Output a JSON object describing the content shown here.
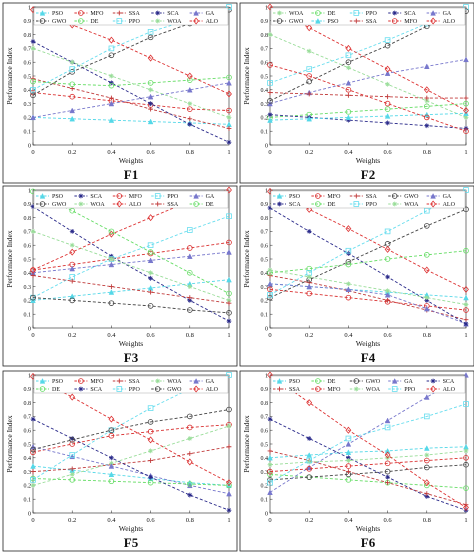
{
  "figure": {
    "line_color": "#222222"
  },
  "chart_data": [
    {
      "type": "line",
      "label": "F1",
      "xlabel": "Weights",
      "ylabel": "Performance Index",
      "xlim": [
        0,
        1
      ],
      "ylim": [
        0,
        1
      ],
      "xticks": [
        "0",
        "0.2",
        "0.4",
        "0.6",
        "0.8",
        "1"
      ],
      "yticks": [
        "0",
        "0.1",
        "0.2",
        "0.3",
        "0.4",
        "0.5",
        "0.6",
        "0.7",
        "0.8",
        "0.9",
        "1"
      ],
      "legend": [
        "PSO",
        "MFO",
        "SSA",
        "SCA",
        "GA",
        "GWO",
        "DE",
        "PPO",
        "WOA",
        "ALO"
      ],
      "x": [
        0,
        0.2,
        0.4,
        0.6,
        0.8,
        1
      ],
      "series": [
        {
          "name": "PSO",
          "color": "#55d8e8",
          "marker": "triangle",
          "values": [
            0.2,
            0.19,
            0.18,
            0.17,
            0.16,
            0.15
          ]
        },
        {
          "name": "MFO",
          "color": "#d93030",
          "marker": "circle",
          "values": [
            0.38,
            0.35,
            0.32,
            0.29,
            0.26,
            0.25
          ]
        },
        {
          "name": "SSA",
          "color": "#c03a3a",
          "marker": "plus",
          "values": [
            0.48,
            0.41,
            0.34,
            0.26,
            0.19,
            0.12
          ]
        },
        {
          "name": "SCA",
          "color": "#2a2a8a",
          "marker": "star",
          "values": [
            0.75,
            0.6,
            0.45,
            0.3,
            0.15,
            0.02
          ]
        },
        {
          "name": "GA",
          "color": "#7777cc",
          "marker": "triangle",
          "values": [
            0.2,
            0.25,
            0.3,
            0.35,
            0.4,
            0.45
          ]
        },
        {
          "name": "GWO",
          "color": "#444444",
          "marker": "circle",
          "values": [
            0.36,
            0.53,
            0.65,
            0.78,
            0.88,
            0.98
          ]
        },
        {
          "name": "DE",
          "color": "#66dd66",
          "marker": "circle",
          "values": [
            0.46,
            0.44,
            0.43,
            0.45,
            0.47,
            0.49
          ]
        },
        {
          "name": "PPO",
          "color": "#66ddee",
          "marker": "square",
          "values": [
            0.4,
            0.55,
            0.7,
            0.82,
            0.91,
            1.0
          ]
        },
        {
          "name": "WOA",
          "color": "#99dd99",
          "marker": "star",
          "values": [
            0.7,
            0.6,
            0.5,
            0.4,
            0.3,
            0.2
          ]
        },
        {
          "name": "ALO",
          "color": "#dd3333",
          "marker": "diamond",
          "values": [
            0.98,
            0.87,
            0.76,
            0.63,
            0.5,
            0.37
          ]
        }
      ]
    },
    {
      "type": "line",
      "label": "F2",
      "xlabel": "Weights",
      "ylabel": "Performance Index",
      "xlim": [
        0,
        1
      ],
      "ylim": [
        0,
        1
      ],
      "xticks": [
        "0",
        "0.2",
        "0.4",
        "0.6",
        "0.8",
        "1"
      ],
      "yticks": [
        "0",
        "0.1",
        "0.2",
        "0.3",
        "0.4",
        "0.5",
        "0.6",
        "0.7",
        "0.8",
        "0.9",
        "1"
      ],
      "legend": [
        "WOA",
        "DE",
        "PPO",
        "SCA",
        "GA",
        "GWO",
        "PSO",
        "SSA",
        "MFO",
        "ALO"
      ],
      "x": [
        0,
        0.2,
        0.4,
        0.6,
        0.8,
        1
      ],
      "series": [
        {
          "name": "WOA",
          "color": "#99dd99",
          "marker": "star",
          "values": [
            0.8,
            0.68,
            0.56,
            0.44,
            0.32,
            0.2
          ]
        },
        {
          "name": "DE",
          "color": "#66dd66",
          "marker": "circle",
          "values": [
            0.2,
            0.22,
            0.24,
            0.26,
            0.28,
            0.3
          ]
        },
        {
          "name": "PPO",
          "color": "#66ddee",
          "marker": "square",
          "values": [
            0.45,
            0.55,
            0.65,
            0.76,
            0.88,
            1.0
          ]
        },
        {
          "name": "SCA",
          "color": "#2a2a8a",
          "marker": "star",
          "values": [
            0.22,
            0.2,
            0.18,
            0.16,
            0.14,
            0.12
          ]
        },
        {
          "name": "GA",
          "color": "#7777cc",
          "marker": "triangle",
          "values": [
            0.3,
            0.38,
            0.45,
            0.52,
            0.57,
            0.62
          ]
        },
        {
          "name": "GWO",
          "color": "#444444",
          "marker": "circle",
          "values": [
            0.32,
            0.46,
            0.6,
            0.72,
            0.86,
            0.97
          ]
        },
        {
          "name": "PSO",
          "color": "#55d8e8",
          "marker": "triangle",
          "values": [
            0.18,
            0.19,
            0.2,
            0.21,
            0.22,
            0.23
          ]
        },
        {
          "name": "SSA",
          "color": "#c03a3a",
          "marker": "plus",
          "values": [
            0.38,
            0.37,
            0.36,
            0.35,
            0.34,
            0.34
          ]
        },
        {
          "name": "MFO",
          "color": "#d93030",
          "marker": "circle",
          "values": [
            0.58,
            0.5,
            0.4,
            0.3,
            0.2,
            0.1
          ]
        },
        {
          "name": "ALO",
          "color": "#dd3333",
          "marker": "diamond",
          "values": [
            1.0,
            0.85,
            0.7,
            0.55,
            0.4,
            0.25
          ]
        }
      ]
    },
    {
      "type": "line",
      "label": "F3",
      "xlabel": "Weights",
      "ylabel": "Performance Index",
      "xlim": [
        0,
        1
      ],
      "ylim": [
        0,
        1
      ],
      "xticks": [
        "0",
        "0.2",
        "0.4",
        "0.6",
        "0.8",
        "1"
      ],
      "yticks": [
        "0",
        "0.1",
        "0.2",
        "0.3",
        "0.4",
        "0.5",
        "0.6",
        "0.7",
        "0.8",
        "0.9",
        "1"
      ],
      "legend": [
        "PSO",
        "SCA",
        "MFO",
        "PPO",
        "GA",
        "GWO",
        "WOA",
        "ALO",
        "SSA",
        "DE"
      ],
      "x": [
        0,
        0.2,
        0.4,
        0.6,
        0.8,
        1
      ],
      "series": [
        {
          "name": "PSO",
          "color": "#55d8e8",
          "marker": "triangle",
          "values": [
            0.2,
            0.23,
            0.26,
            0.29,
            0.32,
            0.35
          ]
        },
        {
          "name": "SCA",
          "color": "#2a2a8a",
          "marker": "star",
          "values": [
            0.88,
            0.7,
            0.52,
            0.36,
            0.2,
            0.05
          ]
        },
        {
          "name": "MFO",
          "color": "#d93030",
          "marker": "circle",
          "values": [
            0.42,
            0.46,
            0.5,
            0.54,
            0.58,
            0.62
          ]
        },
        {
          "name": "PPO",
          "color": "#66ddee",
          "marker": "square",
          "values": [
            0.22,
            0.37,
            0.5,
            0.6,
            0.71,
            0.81
          ]
        },
        {
          "name": "GA",
          "color": "#7777cc",
          "marker": "triangle",
          "values": [
            0.4,
            0.43,
            0.46,
            0.49,
            0.52,
            0.55
          ]
        },
        {
          "name": "GWO",
          "color": "#444444",
          "marker": "circle",
          "values": [
            0.22,
            0.2,
            0.18,
            0.16,
            0.13,
            0.11
          ]
        },
        {
          "name": "WOA",
          "color": "#99dd99",
          "marker": "star",
          "values": [
            0.7,
            0.6,
            0.5,
            0.4,
            0.3,
            0.2
          ]
        },
        {
          "name": "ALO",
          "color": "#dd3333",
          "marker": "diamond",
          "values": [
            0.42,
            0.55,
            0.68,
            0.8,
            0.92,
            1.0
          ]
        },
        {
          "name": "SSA",
          "color": "#c03a3a",
          "marker": "plus",
          "values": [
            0.38,
            0.34,
            0.3,
            0.26,
            0.22,
            0.18
          ]
        },
        {
          "name": "DE",
          "color": "#66dd66",
          "marker": "circle",
          "values": [
            0.99,
            0.85,
            0.7,
            0.55,
            0.4,
            0.25
          ]
        }
      ]
    },
    {
      "type": "line",
      "label": "F4",
      "xlabel": "Weights",
      "ylabel": "Performance Index",
      "xlim": [
        0,
        1
      ],
      "ylim": [
        0,
        1
      ],
      "xticks": [
        "0",
        "0.2",
        "0.4",
        "0.6",
        "0.8",
        "1"
      ],
      "yticks": [
        "0",
        "0.1",
        "0.2",
        "0.3",
        "0.4",
        "0.5",
        "0.6",
        "0.7",
        "0.8",
        "0.9",
        "1"
      ],
      "legend": [
        "PSO",
        "MFO",
        "SSA",
        "GWO",
        "GA",
        "SCA",
        "DE",
        "PPO",
        "WOA",
        "ALO"
      ],
      "x": [
        0,
        0.2,
        0.4,
        0.6,
        0.8,
        1
      ],
      "series": [
        {
          "name": "PSO",
          "color": "#55d8e8",
          "marker": "triangle",
          "values": [
            0.32,
            0.3,
            0.28,
            0.26,
            0.24,
            0.22
          ]
        },
        {
          "name": "MFO",
          "color": "#d93030",
          "marker": "circle",
          "values": [
            0.28,
            0.25,
            0.22,
            0.19,
            0.16,
            0.13
          ]
        },
        {
          "name": "SSA",
          "color": "#c03a3a",
          "marker": "plus",
          "values": [
            0.38,
            0.33,
            0.27,
            0.2,
            0.13,
            0.06
          ]
        },
        {
          "name": "GWO",
          "color": "#444444",
          "marker": "circle",
          "values": [
            0.22,
            0.35,
            0.48,
            0.61,
            0.74,
            0.86
          ]
        },
        {
          "name": "GA",
          "color": "#7777cc",
          "marker": "triangle",
          "values": [
            0.32,
            0.3,
            0.28,
            0.24,
            0.14,
            0.03
          ]
        },
        {
          "name": "SCA",
          "color": "#2a2a8a",
          "marker": "star",
          "values": [
            0.87,
            0.7,
            0.54,
            0.37,
            0.2,
            0.03
          ]
        },
        {
          "name": "DE",
          "color": "#66dd66",
          "marker": "circle",
          "values": [
            0.4,
            0.43,
            0.46,
            0.5,
            0.53,
            0.56
          ]
        },
        {
          "name": "PPO",
          "color": "#66ddee",
          "marker": "square",
          "values": [
            0.24,
            0.4,
            0.56,
            0.7,
            0.85,
            1.0
          ]
        },
        {
          "name": "WOA",
          "color": "#99dd99",
          "marker": "star",
          "values": [
            0.42,
            0.37,
            0.32,
            0.27,
            0.22,
            0.17
          ]
        },
        {
          "name": "ALO",
          "color": "#dd3333",
          "marker": "diamond",
          "values": [
            0.99,
            0.86,
            0.72,
            0.57,
            0.42,
            0.28
          ]
        }
      ]
    },
    {
      "type": "line",
      "label": "F5",
      "xlabel": "Weights",
      "ylabel": "Performance Index",
      "xlim": [
        0,
        1
      ],
      "ylim": [
        0,
        1
      ],
      "xticks": [
        "0",
        "0.2",
        "0.4",
        "0.6",
        "0.8",
        "1"
      ],
      "yticks": [
        "0",
        "0.1",
        "0.2",
        "0.3",
        "0.4",
        "0.5",
        "0.6",
        "0.7",
        "0.8",
        "0.9",
        "1"
      ],
      "legend": [
        "PSO",
        "MFO",
        "SSA",
        "WOA",
        "GA",
        "DE",
        "SCA",
        "PPO",
        "GWO",
        "ALO"
      ],
      "x": [
        0,
        0.2,
        0.4,
        0.6,
        0.8,
        1
      ],
      "series": [
        {
          "name": "PSO",
          "color": "#55d8e8",
          "marker": "triangle",
          "values": [
            0.34,
            0.31,
            0.28,
            0.25,
            0.22,
            0.2
          ]
        },
        {
          "name": "MFO",
          "color": "#d93030",
          "marker": "circle",
          "values": [
            0.44,
            0.5,
            0.56,
            0.59,
            0.62,
            0.64
          ]
        },
        {
          "name": "SSA",
          "color": "#c03a3a",
          "marker": "plus",
          "values": [
            0.3,
            0.32,
            0.35,
            0.38,
            0.43,
            0.48
          ]
        },
        {
          "name": "WOA",
          "color": "#99dd99",
          "marker": "star",
          "values": [
            0.2,
            0.28,
            0.36,
            0.45,
            0.54,
            0.63
          ]
        },
        {
          "name": "GA",
          "color": "#7777cc",
          "marker": "triangle",
          "values": [
            0.48,
            0.41,
            0.34,
            0.27,
            0.2,
            0.14
          ]
        },
        {
          "name": "DE",
          "color": "#66dd66",
          "marker": "circle",
          "values": [
            0.25,
            0.24,
            0.23,
            0.22,
            0.21,
            0.2
          ]
        },
        {
          "name": "SCA",
          "color": "#2a2a8a",
          "marker": "star",
          "values": [
            0.68,
            0.54,
            0.4,
            0.26,
            0.13,
            0.02
          ]
        },
        {
          "name": "PPO",
          "color": "#66ddee",
          "marker": "square",
          "values": [
            0.24,
            0.42,
            0.6,
            0.76,
            0.9,
            1.0
          ]
        },
        {
          "name": "GWO",
          "color": "#444444",
          "marker": "circle",
          "values": [
            0.46,
            0.53,
            0.6,
            0.66,
            0.7,
            0.75
          ]
        },
        {
          "name": "ALO",
          "color": "#dd3333",
          "marker": "diamond",
          "values": [
            0.99,
            0.84,
            0.68,
            0.53,
            0.37,
            0.22
          ]
        }
      ]
    },
    {
      "type": "line",
      "label": "F6",
      "xlabel": "Weights",
      "ylabel": "Performance Index",
      "xlim": [
        0,
        1
      ],
      "ylim": [
        0,
        1
      ],
      "xticks": [
        "0",
        "0.2",
        "0.4",
        "0.6",
        "0.8",
        "1"
      ],
      "yticks": [
        "0",
        "0.1",
        "0.2",
        "0.3",
        "0.4",
        "0.5",
        "0.6",
        "0.7",
        "0.8",
        "0.9",
        "1"
      ],
      "legend": [
        "PSO",
        "DE",
        "GWO",
        "GA",
        "SCA",
        "SSA",
        "MFO",
        "WOA",
        "PPO",
        "ALO"
      ],
      "x": [
        0,
        0.2,
        0.4,
        0.6,
        0.8,
        1
      ],
      "series": [
        {
          "name": "PSO",
          "color": "#55d8e8",
          "marker": "triangle",
          "values": [
            0.4,
            0.42,
            0.44,
            0.45,
            0.47,
            0.48
          ]
        },
        {
          "name": "DE",
          "color": "#66dd66",
          "marker": "circle",
          "values": [
            0.28,
            0.26,
            0.24,
            0.22,
            0.2,
            0.18
          ]
        },
        {
          "name": "GWO",
          "color": "#444444",
          "marker": "circle",
          "values": [
            0.24,
            0.26,
            0.28,
            0.3,
            0.33,
            0.35
          ]
        },
        {
          "name": "GA",
          "color": "#7777cc",
          "marker": "triangle",
          "values": [
            0.15,
            0.33,
            0.5,
            0.67,
            0.84,
            1.0
          ]
        },
        {
          "name": "SCA",
          "color": "#2a2a8a",
          "marker": "star",
          "values": [
            0.68,
            0.54,
            0.4,
            0.26,
            0.12,
            0.02
          ]
        },
        {
          "name": "SSA",
          "color": "#c03a3a",
          "marker": "plus",
          "values": [
            0.45,
            0.38,
            0.3,
            0.22,
            0.14,
            0.06
          ]
        },
        {
          "name": "MFO",
          "color": "#d93030",
          "marker": "circle",
          "values": [
            0.3,
            0.32,
            0.34,
            0.36,
            0.38,
            0.4
          ]
        },
        {
          "name": "WOA",
          "color": "#99dd99",
          "marker": "star",
          "values": [
            0.35,
            0.37,
            0.38,
            0.4,
            0.42,
            0.45
          ]
        },
        {
          "name": "PPO",
          "color": "#66ddee",
          "marker": "square",
          "values": [
            0.22,
            0.38,
            0.54,
            0.62,
            0.7,
            0.79
          ]
        },
        {
          "name": "ALO",
          "color": "#dd3333",
          "marker": "diamond",
          "values": [
            1.0,
            0.8,
            0.6,
            0.42,
            0.22,
            0.04
          ]
        }
      ]
    }
  ]
}
